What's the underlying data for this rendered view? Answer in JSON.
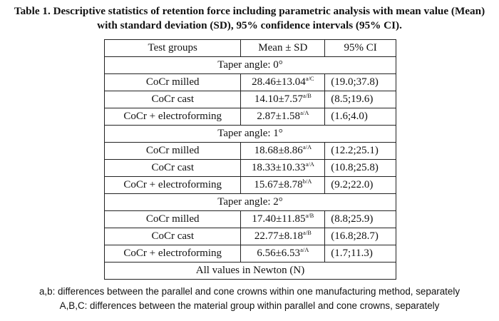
{
  "caption": "Table 1. Descriptive statistics of retention force including parametric analysis with mean value (Mean) with standard deviation (SD), 95% confidence intervals (95% CI).",
  "table": {
    "headers": [
      "Test groups",
      "Mean ± SD",
      "95% CI"
    ],
    "sections": [
      {
        "title": "Taper angle: 0°",
        "rows": [
          {
            "group": "CoCr milled",
            "mean": "28.46±13.04",
            "sup": "a/C",
            "ci": "(19.0;37.8)"
          },
          {
            "group": "CoCr cast",
            "mean": "14.10±7.57",
            "sup": "a/B",
            "ci": "(8.5;19.6)"
          },
          {
            "group": "CoCr + electroforming",
            "mean": "2.87±1.58",
            "sup": "a/A",
            "ci": "(1.6;4.0)"
          }
        ]
      },
      {
        "title": "Taper angle: 1°",
        "rows": [
          {
            "group": "CoCr milled",
            "mean": "18.68±8.86",
            "sup": "a/A",
            "ci": "(12.2;25.1)"
          },
          {
            "group": "CoCr cast",
            "mean": "18.33±10.33",
            "sup": "a/A",
            "ci": "(10.8;25.8)"
          },
          {
            "group": "CoCr + electroforming",
            "mean": "15.67±8.78",
            "sup": "b/A",
            "ci": "(9.2;22.0)"
          }
        ]
      },
      {
        "title": "Taper angle: 2°",
        "rows": [
          {
            "group": "CoCr milled",
            "mean": "17.40±11.85",
            "sup": "a/B",
            "ci": "(8.8;25.9)"
          },
          {
            "group": "CoCr cast",
            "mean": "22.77±8.18",
            "sup": "a/B",
            "ci": "(16.8;28.7)"
          },
          {
            "group": "CoCr + electroforming",
            "mean": "6.56±6.53",
            "sup": "a/A",
            "ci": "(1.7;11.3)"
          }
        ]
      }
    ],
    "units_note": "All values in Newton (N)"
  },
  "footnotes": [
    "a,b: differences between the parallel and cone crowns within one manufacturing method, separately",
    "A,B,C: differences between the material group within parallel and cone crowns, separately"
  ]
}
